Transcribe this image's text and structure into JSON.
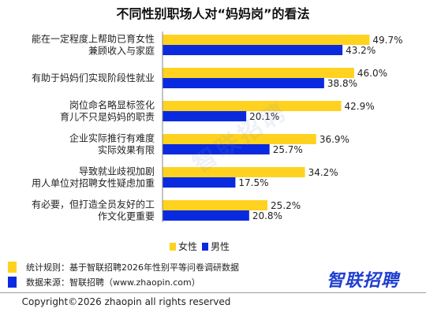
{
  "title": "不同性别职场人对“妈妈岗”的看法",
  "watermark": "智联招聘",
  "colors": {
    "female": "#FFD21F",
    "male": "#0A2ADF"
  },
  "legend": {
    "female": "女性",
    "male": "男性"
  },
  "footnotes": {
    "method": "统计规则：基于智联招聘2026年性别平等问卷调研数据",
    "source": "数据来源：智联招聘（www.zhaopin.com）"
  },
  "brand": "智联招聘",
  "copyright": "Copyright©2026 zhaopin all rights reserved",
  "chart_data": {
    "type": "bar",
    "orientation": "horizontal",
    "title": "不同性别职场人对“妈妈岗”的看法",
    "categories": [
      [
        "能在一定程度上帮助已育女性",
        "兼顾收入与家庭"
      ],
      [
        "有助于妈妈们实现阶段性就业"
      ],
      [
        "岗位命名略显标签化",
        "育儿不只是妈妈的职责"
      ],
      [
        "企业实际推行有难度",
        "实际效果有限"
      ],
      [
        "导致就业歧视加剧",
        "用人单位对招聘女性疑虑加重"
      ],
      [
        "有必要，但打造全员友好的工",
        "作文化更重要"
      ]
    ],
    "series": [
      {
        "name": "女性",
        "values": [
          49.7,
          46.0,
          42.9,
          36.9,
          34.2,
          25.2
        ]
      },
      {
        "name": "男性",
        "values": [
          43.2,
          38.8,
          20.1,
          25.7,
          17.5,
          20.8
        ]
      }
    ],
    "value_suffix": "%",
    "xlim": [
      0,
      50
    ],
    "grid": false,
    "legend_position": "bottom"
  }
}
